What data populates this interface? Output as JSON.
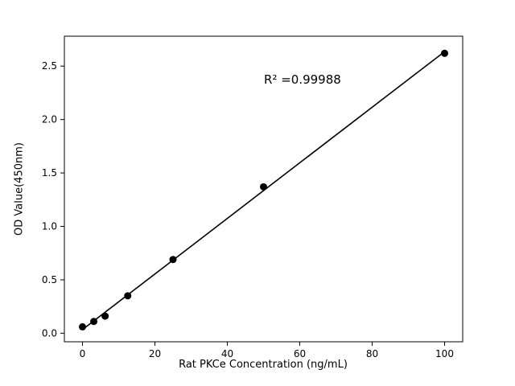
{
  "chart_data": {
    "type": "scatter",
    "title": "",
    "xlabel": "Rat PKCe Concentration (ng/mL)",
    "ylabel": "OD Value(450nm)",
    "annotation": "R² =0.99988",
    "x": [
      0,
      3.125,
      6.25,
      12.5,
      25,
      50,
      100
    ],
    "y": [
      0.06,
      0.11,
      0.16,
      0.35,
      0.69,
      1.37,
      2.62
    ],
    "fit_line": true,
    "xlim": [
      -5,
      105
    ],
    "ylim": [
      -0.08,
      2.78
    ],
    "xticks": [
      0,
      20,
      40,
      60,
      80,
      100
    ],
    "yticks": [
      0.0,
      0.5,
      1.0,
      1.5,
      2.0,
      2.5
    ],
    "grid": false,
    "legend": "none",
    "marker_color": "#000000",
    "line_color": "#000000",
    "background_color": "#ffffff"
  }
}
